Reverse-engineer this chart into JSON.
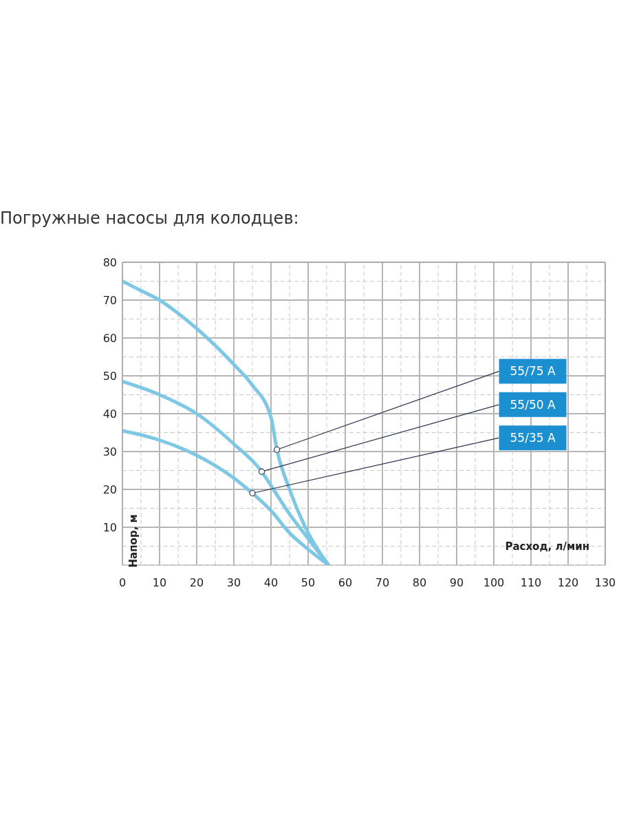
{
  "chart_data": {
    "type": "line",
    "title": "Погружные насосы для колодцев:",
    "xlabel": "Расход, л/мин",
    "ylabel": "Напор, м",
    "xlim": [
      0,
      130
    ],
    "ylim": [
      0,
      80
    ],
    "xticks": [
      0,
      {
        "value": 5,
        "label": null
      },
      10,
      {
        "value": 15,
        "label": null
      },
      20,
      {
        "value": 25,
        "label": null
      },
      30,
      {
        "value": 35,
        "label": null
      },
      40,
      {
        "value": 45,
        "label": null
      },
      50,
      {
        "value": 55,
        "label": null
      },
      60,
      {
        "value": 65,
        "label": null
      },
      70,
      {
        "value": 75,
        "label": null
      },
      80,
      {
        "value": 85,
        "label": null
      },
      90,
      {
        "value": 95,
        "label": null
      },
      100,
      {
        "value": 105,
        "label": null
      },
      110,
      {
        "value": 115,
        "label": null
      },
      120,
      {
        "value": 125,
        "label": null
      },
      130
    ],
    "yticks": [
      {
        "value": 0,
        "label": null
      },
      {
        "value": 5,
        "label": null
      },
      10,
      {
        "value": 15,
        "label": null
      },
      20,
      {
        "value": 25,
        "label": null
      },
      30,
      {
        "value": 35,
        "label": null
      },
      40,
      {
        "value": 45,
        "label": null
      },
      50,
      {
        "value": 55,
        "label": null
      },
      60,
      {
        "value": 65,
        "label": null
      },
      70,
      {
        "value": 75,
        "label": null
      },
      80
    ],
    "grid": true,
    "marker": "none",
    "line_style": "solid",
    "series": [
      {
        "color": "#7ec8e6",
        "x": [
          0,
          5,
          10,
          15,
          20,
          25,
          30,
          35,
          40,
          41.6,
          45,
          50,
          55.5
        ],
        "values": [
          75,
          72.5,
          70,
          66.5,
          62.5,
          58,
          53,
          47.5,
          39,
          30.5,
          20,
          8.5,
          0
        ]
      },
      {
        "color": "#7ec8e6",
        "x": [
          0,
          10,
          20,
          30,
          37.5,
          40,
          45,
          50,
          55.5
        ],
        "values": [
          48.5,
          45,
          40,
          32,
          24.7,
          21,
          13.5,
          7,
          0
        ]
      },
      {
        "color": "#7ec8e6",
        "x": [
          0,
          10,
          20,
          30,
          35,
          40,
          45,
          50,
          55.5
        ],
        "values": [
          35.5,
          33,
          29,
          23,
          19,
          14.4,
          8.5,
          4.2,
          0
        ]
      }
    ],
    "annotations": [
      {
        "text": "55/75 A",
        "x": 41.6,
        "y": 30.5
      },
      {
        "text": "55/50 A",
        "x": 37.5,
        "y": 24.7
      },
      {
        "text": "55/35 A",
        "x": 35,
        "y": 19
      }
    ]
  }
}
